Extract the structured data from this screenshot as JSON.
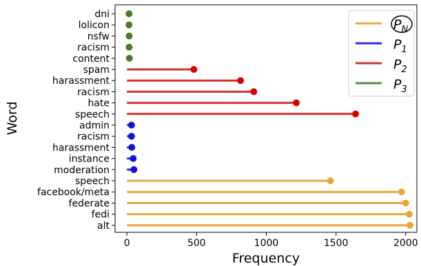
{
  "chart_data": {
    "type": "lollipop",
    "orientation": "horizontal",
    "xlabel": "Frequency",
    "ylabel": "Word",
    "xticks": [
      0,
      500,
      1000,
      1500,
      2000
    ],
    "xlim": [
      -85,
      2080
    ],
    "grid": false,
    "legend_position": "top-right",
    "legend": [
      {
        "label": "P_N",
        "display_main": "P",
        "display_sub": "N",
        "circled": true,
        "color": "#E8A838"
      },
      {
        "label": "P_1",
        "display_main": "P",
        "display_sub": "1",
        "circled": false,
        "color": "#2B2BE8"
      },
      {
        "label": "P_2",
        "display_main": "P",
        "display_sub": "2",
        "circled": false,
        "color": "#CC3333"
      },
      {
        "label": "P_3",
        "display_main": "P",
        "display_sub": "3",
        "circled": false,
        "color": "#5A8A3A"
      }
    ],
    "series": [
      {
        "name": "P_N",
        "line_color": "#E8A838",
        "marker_color": "#E8A838",
        "points": [
          {
            "word": "alt",
            "value": 2030
          },
          {
            "word": "fedi",
            "value": 2025
          },
          {
            "word": "federate",
            "value": 2000
          },
          {
            "word": "facebook/meta",
            "value": 1970
          },
          {
            "word": "speech",
            "value": 1460
          }
        ]
      },
      {
        "name": "P_1",
        "line_color": "#2B2BE8",
        "marker_color": "#1111DD",
        "points": [
          {
            "word": "moderation",
            "value": 50
          },
          {
            "word": "instance",
            "value": 45
          },
          {
            "word": "harassment",
            "value": 35
          },
          {
            "word": "racism",
            "value": 33
          },
          {
            "word": "admin",
            "value": 33
          }
        ]
      },
      {
        "name": "P_2",
        "line_color": "#CC3333",
        "marker_color": "#DD0000",
        "points": [
          {
            "word": "speech",
            "value": 1640
          },
          {
            "word": "hate",
            "value": 1215
          },
          {
            "word": "racism",
            "value": 910
          },
          {
            "word": "harassment",
            "value": 815
          },
          {
            "word": "spam",
            "value": 480
          }
        ]
      },
      {
        "name": "P_3",
        "line_color": "#5A8A3A",
        "marker_color": "#4A7A2A",
        "points": [
          {
            "word": "content",
            "value": 18
          },
          {
            "word": "racism",
            "value": 16
          },
          {
            "word": "nsfw",
            "value": 16
          },
          {
            "word": "lolicon",
            "value": 15
          },
          {
            "word": "dni",
            "value": 15
          }
        ]
      }
    ]
  }
}
